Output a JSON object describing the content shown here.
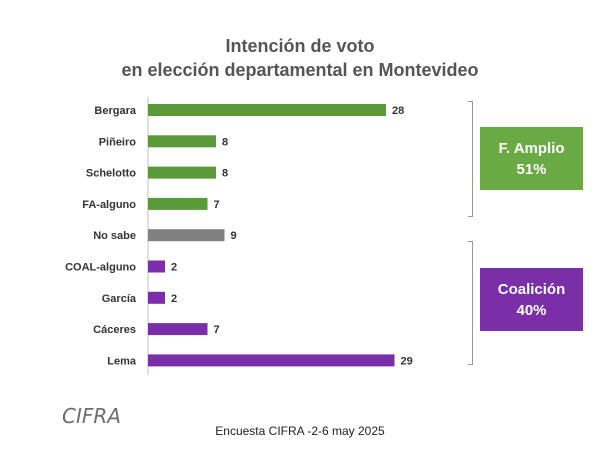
{
  "chart_data": {
    "type": "bar",
    "orientation": "horizontal",
    "title_lines": [
      "Intención de voto",
      "en elección departamental en Montevideo"
    ],
    "categories": [
      "Bergara",
      "Piñeiro",
      "Schelotto",
      "FA-alguno",
      "No sabe",
      "COAL-alguno",
      "García",
      "Cáceres",
      "Lema"
    ],
    "values": [
      28,
      8,
      8,
      7,
      9,
      2,
      2,
      7,
      29
    ],
    "bar_colors": [
      "#5a9a3a",
      "#5a9a3a",
      "#5a9a3a",
      "#5a9a3a",
      "#808080",
      "#7a2fa8",
      "#7a2fa8",
      "#7a2fa8",
      "#7a2fa8"
    ],
    "xlim": [
      0,
      30
    ],
    "grid": false,
    "groups": [
      {
        "name": "F. Amplio",
        "share": "51%",
        "color": "#6aaa45"
      },
      {
        "name": "Coalición",
        "share": "40%",
        "color": "#7a2fa8"
      }
    ]
  },
  "logo_text": "CIFRA",
  "footer": "Encuesta CIFRA -2-6 may 2025"
}
